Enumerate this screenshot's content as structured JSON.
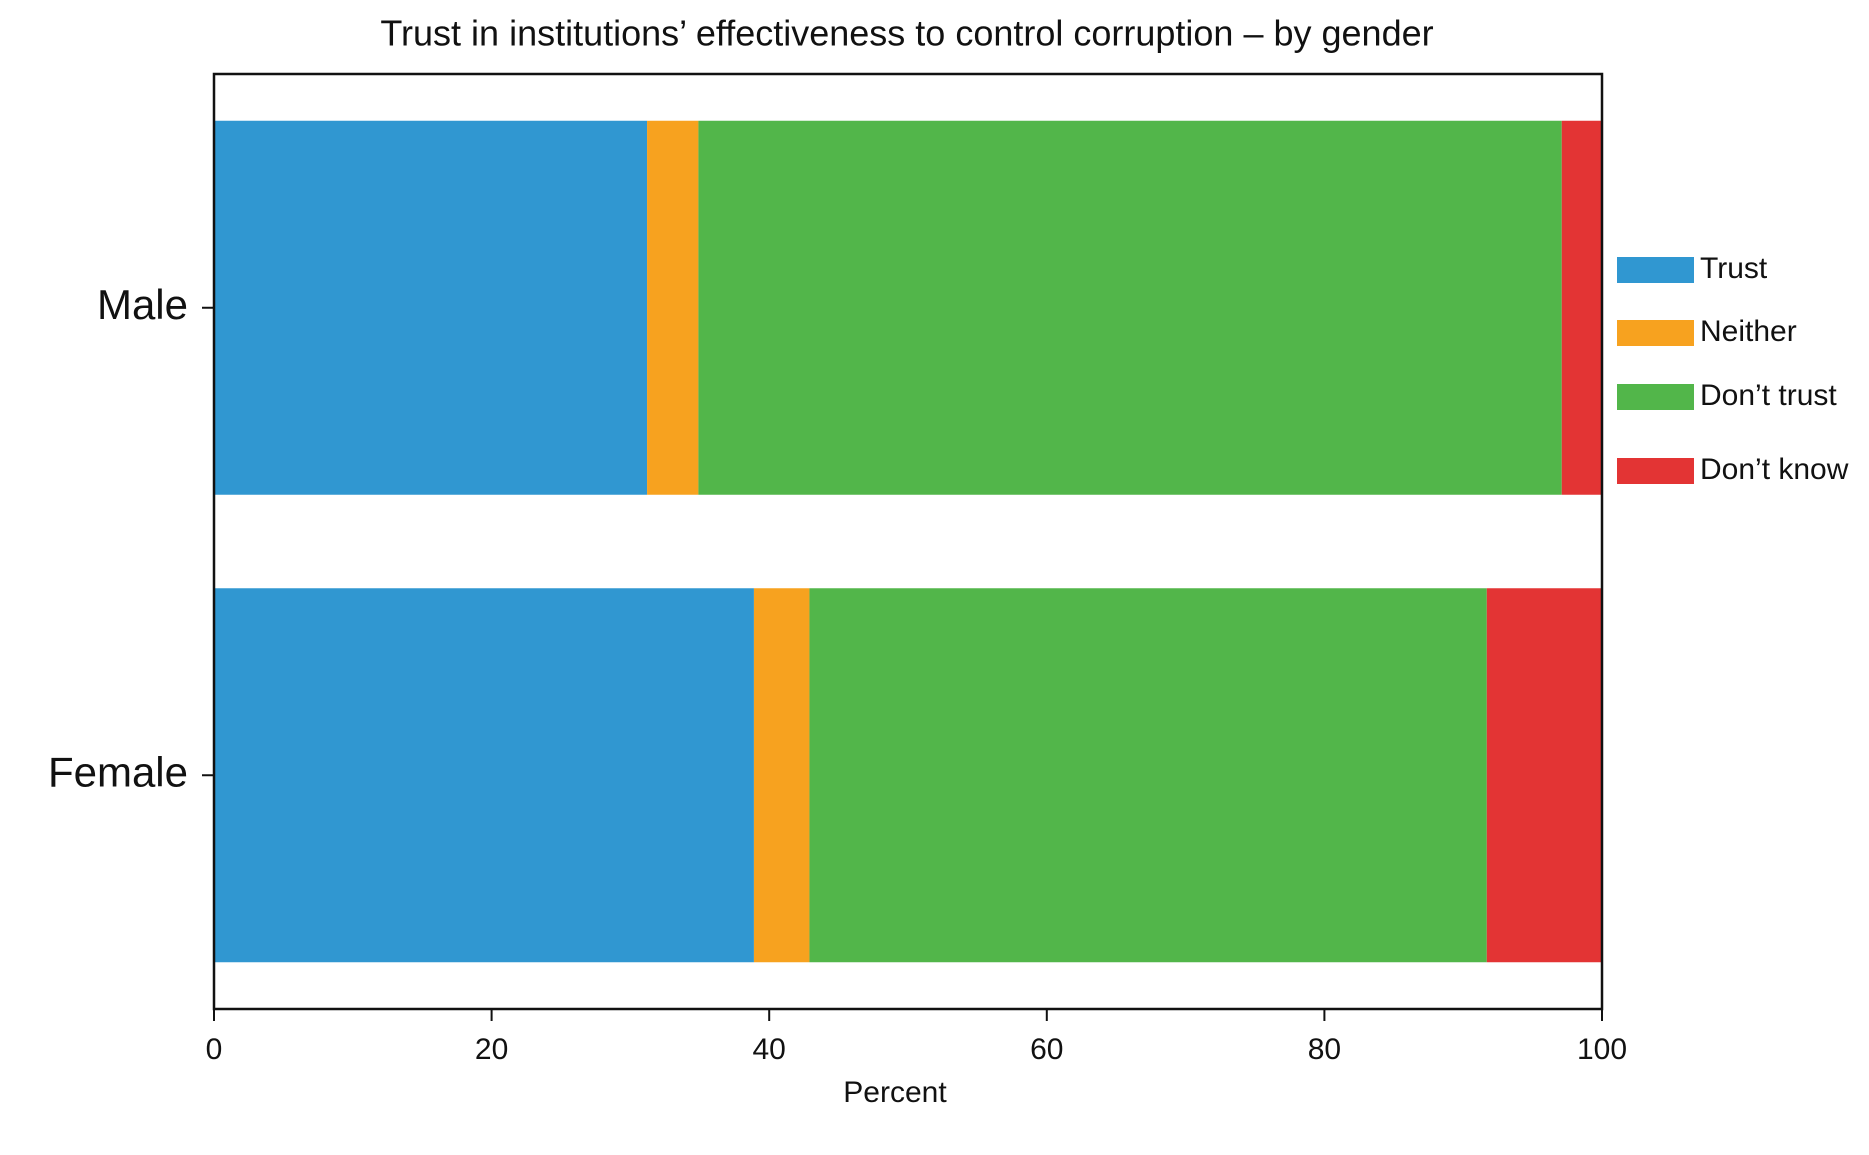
{
  "chart_data": {
    "type": "stacked-barh",
    "title": "Trust in institutions’ effectiveness to control corruption – by gender",
    "xlabel": "Percent",
    "categories": [
      "Male",
      "Female"
    ],
    "series": [
      {
        "name": "Trust",
        "color": "#3097d1",
        "values": [
          31.2,
          38.9
        ]
      },
      {
        "name": "Neither",
        "color": "#f7a21f",
        "values": [
          3.7,
          4.0
        ]
      },
      {
        "name": "Don’t trust",
        "color": "#52b64a",
        "values": [
          62.2,
          48.8
        ]
      },
      {
        "name": "Don’t know",
        "color": "#e33434",
        "values": [
          2.9,
          8.3
        ]
      }
    ],
    "xlim": [
      0,
      100
    ],
    "xticks": [
      0,
      20,
      40,
      60,
      80,
      100
    ],
    "legend": "right"
  }
}
